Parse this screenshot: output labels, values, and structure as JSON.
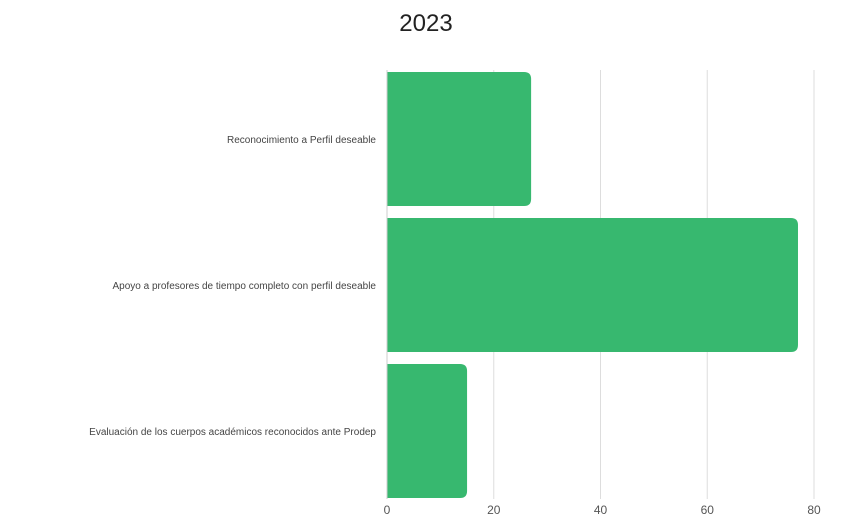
{
  "chart_data": {
    "type": "bar",
    "orientation": "horizontal",
    "title": "2023",
    "categories": [
      "Reconocimiento a Perfil deseable",
      "Apoyo a profesores de tiempo completo con perfil deseable",
      "Evaluación de los cuerpos académicos reconocidos ante Prodep"
    ],
    "values": [
      27,
      77,
      15
    ],
    "xlim": [
      0,
      80
    ],
    "xticks": [
      "0",
      "20",
      "40",
      "60",
      "80"
    ],
    "grid": true,
    "legend": "none",
    "bar_color": "#37b86f",
    "grid_color": "#dddddd"
  }
}
